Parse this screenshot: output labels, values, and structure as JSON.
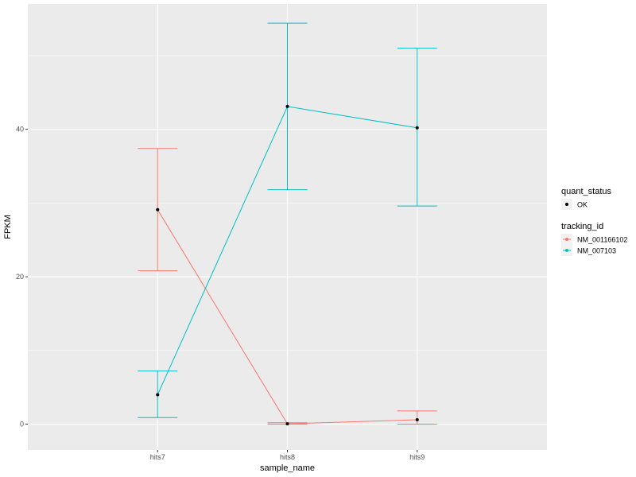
{
  "chart_data": {
    "type": "line",
    "xlabel": "sample_name",
    "ylabel": "FPKM",
    "categories": [
      "hits7",
      "hits8",
      "hits9"
    ],
    "ylim": [
      -3.5,
      57
    ],
    "yticks": [
      0,
      20,
      40
    ],
    "grid": true,
    "legend_position": "right",
    "series": [
      {
        "name": "NM_001166102",
        "color": "#F8766D",
        "values": [
          29.1,
          0.05,
          0.6
        ],
        "error_low": [
          20.8,
          0.0,
          0.0
        ],
        "error_high": [
          37.4,
          0.2,
          1.8
        ]
      },
      {
        "name": "NM_007103",
        "color": "#00BFC4",
        "values": [
          4.0,
          43.1,
          40.2
        ],
        "error_low": [
          0.9,
          31.8,
          29.6
        ],
        "error_high": [
          7.2,
          54.4,
          51.0
        ]
      }
    ],
    "legends": [
      {
        "title": "quant_status",
        "items": [
          {
            "label": "OK",
            "color": "#000000"
          }
        ]
      },
      {
        "title": "tracking_id",
        "items": [
          {
            "label": "NM_001166102",
            "color": "#F8766D"
          },
          {
            "label": "NM_007103",
            "color": "#00BFC4"
          }
        ]
      }
    ]
  }
}
